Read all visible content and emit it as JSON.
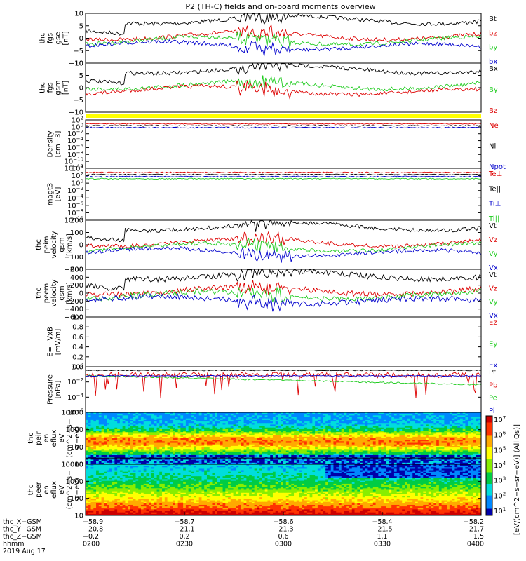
{
  "title": "P2 (TH-C) fields and on-board moments overview",
  "chart_data": {
    "type": "line",
    "panels": [
      {
        "id": "fgs_gse",
        "ylabel": [
          "thc",
          "fgs",
          "gse",
          "[nT]"
        ],
        "yticks": [
          "10",
          "5",
          "0",
          "−5",
          "−10"
        ],
        "ylim": [
          -10,
          10
        ],
        "log": false,
        "legend": [
          {
            "name": "Bt",
            "color": "#000000"
          },
          {
            "name": "bz",
            "color": "#dd0000"
          },
          {
            "name": "by",
            "color": "#22cc22"
          },
          {
            "name": "bx",
            "color": "#0000cc"
          }
        ]
      },
      {
        "id": "fgs_gsm",
        "ylabel": [
          "thc",
          "fgs",
          "gsm",
          "[nT]"
        ],
        "yticks": [
          "10",
          "5",
          "0",
          "−5",
          "−10"
        ],
        "ylim": [
          -10,
          10
        ],
        "log": false,
        "legend": [
          {
            "name": "Bx",
            "color": "#000000"
          },
          {
            "name": "By",
            "color": "#22cc22"
          },
          {
            "name": "Bz",
            "color": "#dd0000"
          }
        ]
      },
      {
        "id": "density",
        "ylabel": [
          "Density",
          "[cm−3]"
        ],
        "yticks": [
          "10^2",
          "10^0",
          "10^−2",
          "10^−4",
          "10^−6",
          "10^−8",
          "10^−10",
          "10^−12"
        ],
        "log": true,
        "legend": [
          {
            "name": "Ne",
            "color": "#dd0000"
          },
          {
            "name": "Ni",
            "color": "#000000"
          },
          {
            "name": "Npot",
            "color": "#0000cc"
          }
        ]
      },
      {
        "id": "temperature",
        "ylabel": [
          "magt3",
          "[eV]"
        ],
        "yticks": [
          "10^4",
          "10^2",
          "10^0",
          "10^−2",
          "10^−4",
          "10^−6",
          "10^−8",
          "10^−10"
        ],
        "log": true,
        "legend": [
          {
            "name": "Te⊥",
            "color": "#dd0000"
          },
          {
            "name": "Te||",
            "color": "#000000"
          },
          {
            "name": "Ti⊥",
            "color": "#0000cc"
          },
          {
            "name": "Ti||",
            "color": "#22cc22"
          }
        ]
      },
      {
        "id": "peim_velocity",
        "ylabel": [
          "thc",
          "peim",
          "velocity",
          "gsm",
          "[km/s]"
        ],
        "yticks": [
          "200",
          "100",
          "0",
          "−100",
          "−200"
        ],
        "ylim": [
          -250,
          250
        ],
        "log": false,
        "legend": [
          {
            "name": "Vt",
            "color": "#000000"
          },
          {
            "name": "Vz",
            "color": "#dd0000"
          },
          {
            "name": "Vy",
            "color": "#22cc22"
          },
          {
            "name": "Vx",
            "color": "#0000cc"
          }
        ]
      },
      {
        "id": "peem_velocity",
        "ylabel": [
          "thc",
          "peem",
          "velocity",
          "gsm",
          "[km/s]"
        ],
        "yticks": [
          "600",
          "400",
          "200",
          "0",
          "−200",
          "−400",
          "−600"
        ],
        "ylim": [
          -700,
          700
        ],
        "log": false,
        "legend": [
          {
            "name": "Vt",
            "color": "#000000"
          },
          {
            "name": "Vz",
            "color": "#dd0000"
          },
          {
            "name": "Vy",
            "color": "#22cc22"
          },
          {
            "name": "Vx",
            "color": "#0000cc"
          }
        ]
      },
      {
        "id": "efield",
        "ylabel": [
          "E=−VxB",
          "[mV/m]"
        ],
        "yticks": [
          "1.0",
          "0.8",
          "0.6",
          "0.4",
          "0.2",
          "0.0"
        ],
        "ylim": [
          0,
          1
        ],
        "log": false,
        "legend": [
          {
            "name": "Ez",
            "color": "#dd0000"
          },
          {
            "name": "Ey",
            "color": "#22cc22"
          },
          {
            "name": "Ex",
            "color": "#0000cc"
          }
        ]
      },
      {
        "id": "pressure",
        "ylabel": [
          "Pressure",
          "[nPa]"
        ],
        "yticks": [
          "10^0",
          "10^−2",
          "10^−4",
          "10^−6"
        ],
        "log": true,
        "legend": [
          {
            "name": "Pt",
            "color": "#000000"
          },
          {
            "name": "Pb",
            "color": "#dd0000"
          },
          {
            "name": "Pe",
            "color": "#22cc22"
          },
          {
            "name": "Pi",
            "color": "#0000cc"
          }
        ]
      },
      {
        "id": "peir_spec",
        "type": "heatmap",
        "ylabel": [
          "thc",
          "peir",
          "en",
          "eflux",
          "eV",
          "(cm^2−s−",
          "sr−eV)"
        ],
        "yticks": [
          "10000",
          "1000",
          "100",
          "10"
        ],
        "log": true
      },
      {
        "id": "peer_spec",
        "type": "heatmap",
        "ylabel": [
          "thc",
          "peer",
          "en",
          "eflux",
          "eV",
          "(cm^2−s−",
          "sr−eV)"
        ],
        "yticks": [
          "10000",
          "1000",
          "100",
          "10"
        ],
        "log": true
      }
    ],
    "colorbar": {
      "ticks": [
        "10^7",
        "10^6",
        "10^5",
        "10^4",
        "10^3",
        "10^2",
        "10^1"
      ],
      "label": "[eV/(cm^2−s−sr−eV)] (All Qs)]",
      "colors": [
        "#0000aa",
        "#0088ff",
        "#00dddd",
        "#00cc44",
        "#88ee00",
        "#ffff00",
        "#ffaa00",
        "#ff3300",
        "#cc0000"
      ]
    },
    "xaxis": {
      "rows": [
        {
          "label": "thc_X−GSM",
          "values": [
            "−58.9",
            "−58.7",
            "−58.6",
            "−58.4",
            "−58.2"
          ]
        },
        {
          "label": "thc_Y−GSM",
          "values": [
            "−20.8",
            "−21.1",
            "−21.3",
            "−21.5",
            "−21.7"
          ]
        },
        {
          "label": "thc_Z−GSM",
          "values": [
            "−0.2",
            "0.2",
            "0.6",
            "1.1",
            "1.5"
          ]
        },
        {
          "label": "hhmm",
          "values": [
            "0200",
            "0230",
            "0300",
            "0330",
            "0400"
          ]
        }
      ],
      "date": "2019 Aug 17"
    },
    "grid": false,
    "legend_placement": "right"
  }
}
